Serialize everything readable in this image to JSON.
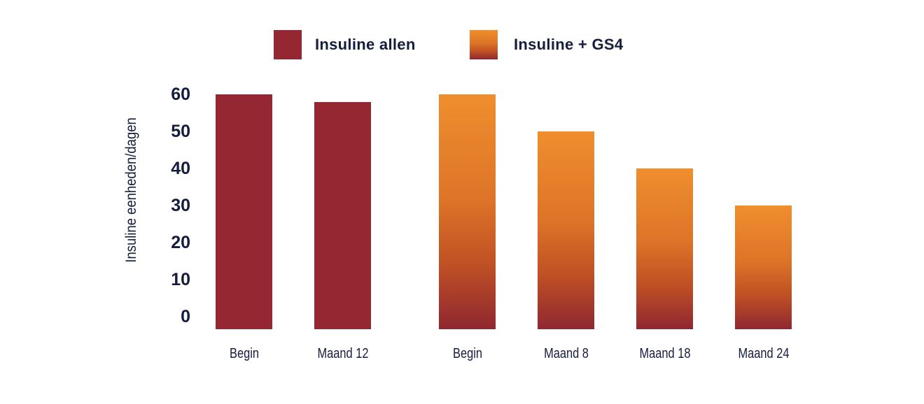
{
  "chart_data": {
    "type": "bar",
    "title": "",
    "xlabel": "",
    "ylabel": "Insuline eenheden/dagen",
    "ylim": [
      0,
      60
    ],
    "yticks": [
      60,
      50,
      40,
      30,
      20,
      10,
      0
    ],
    "grid": false,
    "legend_position": "top",
    "series": [
      {
        "name": "Insuline allen",
        "style": "solid",
        "points": [
          {
            "category": "Begin",
            "value": 60
          },
          {
            "category": "Maand 12",
            "value": 58
          }
        ]
      },
      {
        "name": "Insuline + GS4",
        "style": "gradient",
        "points": [
          {
            "category": "Begin",
            "value": 60
          },
          {
            "category": "Maand 8",
            "value": 50
          },
          {
            "category": "Maand 18",
            "value": 40
          },
          {
            "category": "Maand 24",
            "value": 30
          }
        ]
      }
    ]
  },
  "colors": {
    "background": "#FFFFFF",
    "text_navy": "#151D3E",
    "maroon": "#942732",
    "orange_top": "#EF8E2E",
    "orange_mid": "#DD7428",
    "orange_deep": "#C05124",
    "gradient_bottom": "#8F2731"
  }
}
